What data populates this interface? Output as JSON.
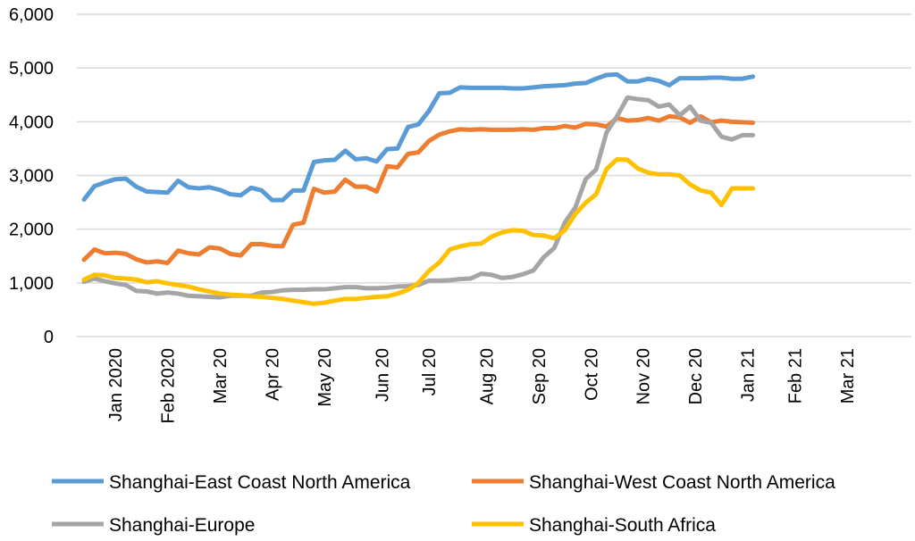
{
  "chart_data": {
    "type": "line",
    "title": "",
    "xlabel": "",
    "ylabel": "",
    "ylim": [
      0,
      6000
    ],
    "yticks": [
      "0",
      "1,000",
      "2,000",
      "3,000",
      "4,000",
      "5,000",
      "6,000"
    ],
    "ytick_values": [
      0,
      1000,
      2000,
      3000,
      4000,
      5000,
      6000
    ],
    "xtick_labels": [
      "Jan 2020",
      "Feb 2020",
      "Mar 20",
      "Apr 20",
      "May 20",
      "Jun 20",
      "Jul 20",
      "Aug 20",
      "Sep 20",
      "Oct 20",
      "Nov 20",
      "Dec 20",
      "Jan 21",
      "Feb 21",
      "Mar 21"
    ],
    "xtick_weeks": [
      3,
      8,
      13,
      18,
      23,
      28.5,
      33,
      38.5,
      43.5,
      48.5,
      53.5,
      58.5,
      63.5,
      68,
      73
    ],
    "x_range": [
      0,
      79
    ],
    "grid": true,
    "legend_position": "bottom",
    "series": [
      {
        "name": "Shanghai-East Coast North America",
        "color": "#5B9BD5",
        "values": [
          2550,
          2800,
          2870,
          2930,
          2940,
          2790,
          2700,
          2690,
          2680,
          2900,
          2780,
          2760,
          2780,
          2730,
          2650,
          2630,
          2770,
          2720,
          2540,
          2540,
          2720,
          2720,
          3250,
          3280,
          3290,
          3460,
          3300,
          3320,
          3260,
          3490,
          3500,
          3900,
          3950,
          4200,
          4530,
          4540,
          4640,
          4630,
          4630,
          4630,
          4630,
          4620,
          4620,
          4640,
          4660,
          4670,
          4680,
          4710,
          4720,
          4800,
          4870,
          4880,
          4750,
          4750,
          4800,
          4760,
          4680,
          4810,
          4810,
          4810,
          4820,
          4820,
          4800,
          4800,
          4840
        ]
      },
      {
        "name": "Shanghai-West Coast North America",
        "color": "#ED7D31",
        "values": [
          1430,
          1620,
          1550,
          1560,
          1540,
          1440,
          1380,
          1400,
          1370,
          1600,
          1550,
          1530,
          1660,
          1640,
          1540,
          1510,
          1720,
          1720,
          1690,
          1680,
          2080,
          2120,
          2750,
          2680,
          2700,
          2920,
          2790,
          2790,
          2700,
          3170,
          3150,
          3400,
          3430,
          3640,
          3760,
          3820,
          3860,
          3850,
          3860,
          3850,
          3850,
          3850,
          3860,
          3850,
          3880,
          3880,
          3920,
          3890,
          3960,
          3950,
          3910,
          4070,
          4020,
          4030,
          4070,
          4020,
          4100,
          4080,
          3980,
          4100,
          3990,
          4020,
          4000,
          3990,
          3980
        ]
      },
      {
        "name": "Shanghai-Europe",
        "color": "#A5A5A5",
        "values": [
          1020,
          1080,
          1030,
          990,
          960,
          850,
          840,
          800,
          820,
          800,
          760,
          750,
          740,
          730,
          760,
          760,
          760,
          820,
          830,
          860,
          870,
          870,
          880,
          880,
          900,
          920,
          920,
          900,
          900,
          910,
          930,
          940,
          960,
          1040,
          1040,
          1050,
          1070,
          1080,
          1170,
          1150,
          1090,
          1110,
          1160,
          1230,
          1480,
          1650,
          2120,
          2400,
          2930,
          3110,
          3800,
          4100,
          4450,
          4420,
          4400,
          4280,
          4320,
          4120,
          4280,
          4020,
          3980,
          3720,
          3670,
          3750,
          3750
        ]
      },
      {
        "name": "Shanghai-South Africa",
        "color": "#FFC000",
        "values": [
          1060,
          1150,
          1140,
          1090,
          1080,
          1060,
          1010,
          1030,
          990,
          960,
          930,
          880,
          840,
          800,
          780,
          770,
          750,
          740,
          720,
          700,
          670,
          640,
          610,
          630,
          670,
          700,
          700,
          720,
          740,
          750,
          800,
          870,
          1000,
          1220,
          1380,
          1620,
          1680,
          1720,
          1730,
          1860,
          1940,
          1980,
          1970,
          1890,
          1880,
          1830,
          1980,
          2280,
          2490,
          2650,
          3120,
          3300,
          3290,
          3130,
          3050,
          3020,
          3020,
          3000,
          2830,
          2720,
          2680,
          2450,
          2760,
          2760,
          2760
        ]
      }
    ]
  }
}
